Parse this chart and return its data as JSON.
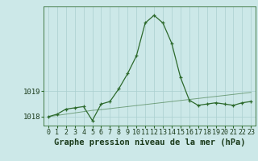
{
  "title": "Graphe pression niveau de la mer (hPa)",
  "x_labels": [
    "0",
    "1",
    "2",
    "3",
    "4",
    "5",
    "6",
    "7",
    "8",
    "9",
    "10",
    "11",
    "12",
    "13",
    "14",
    "15",
    "16",
    "17",
    "18",
    "19",
    "20",
    "21",
    "22",
    "23"
  ],
  "x_values": [
    0,
    1,
    2,
    3,
    4,
    5,
    6,
    7,
    8,
    9,
    10,
    11,
    12,
    13,
    14,
    15,
    16,
    17,
    18,
    19,
    20,
    21,
    22,
    23
  ],
  "y_main": [
    1018.0,
    1018.1,
    1018.3,
    1018.35,
    1018.4,
    1017.85,
    1018.5,
    1018.6,
    1019.1,
    1019.7,
    1020.4,
    1021.7,
    1022.0,
    1021.7,
    1020.9,
    1019.55,
    1018.65,
    1018.45,
    1018.5,
    1018.55,
    1018.5,
    1018.45,
    1018.55,
    1018.6
  ],
  "y_trend": [
    1018.0,
    1018.05,
    1018.1,
    1018.15,
    1018.2,
    1018.25,
    1018.28,
    1018.32,
    1018.36,
    1018.4,
    1018.44,
    1018.48,
    1018.52,
    1018.56,
    1018.6,
    1018.64,
    1018.68,
    1018.72,
    1018.76,
    1018.8,
    1018.84,
    1018.88,
    1018.92,
    1018.96
  ],
  "ylim": [
    1017.65,
    1022.35
  ],
  "yticks": [
    1018,
    1019
  ],
  "line_color": "#2d6a2d",
  "bg_color": "#cce8e8",
  "grid_color": "#aacfcf",
  "title_color": "#1a3a1a",
  "tick_label_color": "#1a3a1a",
  "title_fontsize": 7.5,
  "tick_fontsize": 6.5
}
